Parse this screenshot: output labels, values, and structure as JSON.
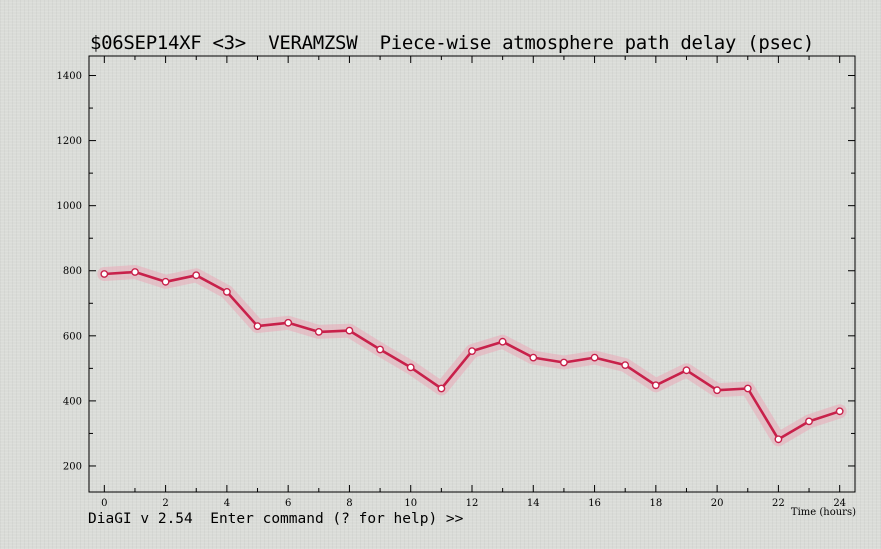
{
  "title": "$06SEP14XF <3>  VERAMZSW  Piece-wise atmosphere path delay (psec)",
  "status": "DiaGI v 2.54  Enter command (? for help) >>",
  "colors": {
    "background": "#dadcd8",
    "line": "#c8204a",
    "band": "#e9a9b8",
    "marker_fill": "#ffffff",
    "axis": "#000000"
  },
  "chart_data": {
    "type": "line",
    "title": "$06SEP14XF <3>  VERAMZSW  Piece-wise atmosphere path delay (psec)",
    "xlabel": "Time (hours)",
    "ylabel": "",
    "xlim": [
      -0.5,
      24.5
    ],
    "ylim": [
      120,
      1460
    ],
    "x_ticks": [
      0,
      2,
      4,
      6,
      8,
      10,
      12,
      14,
      16,
      18,
      20,
      22,
      24
    ],
    "y_ticks": [
      200,
      400,
      600,
      800,
      1000,
      1200,
      1400
    ],
    "grid": false,
    "series": [
      {
        "x": [
          0,
          1,
          2,
          3,
          4,
          5,
          6,
          7,
          8,
          9,
          10,
          11,
          12,
          13,
          14,
          15,
          16,
          17,
          18,
          19,
          20,
          21,
          22,
          23,
          24
        ],
        "y": [
          790,
          796,
          766,
          786,
          735,
          630,
          640,
          612,
          616,
          558,
          503,
          438,
          553,
          582,
          533,
          518,
          533,
          510,
          448,
          494,
          433,
          438,
          282,
          337,
          368
        ]
      }
    ]
  }
}
